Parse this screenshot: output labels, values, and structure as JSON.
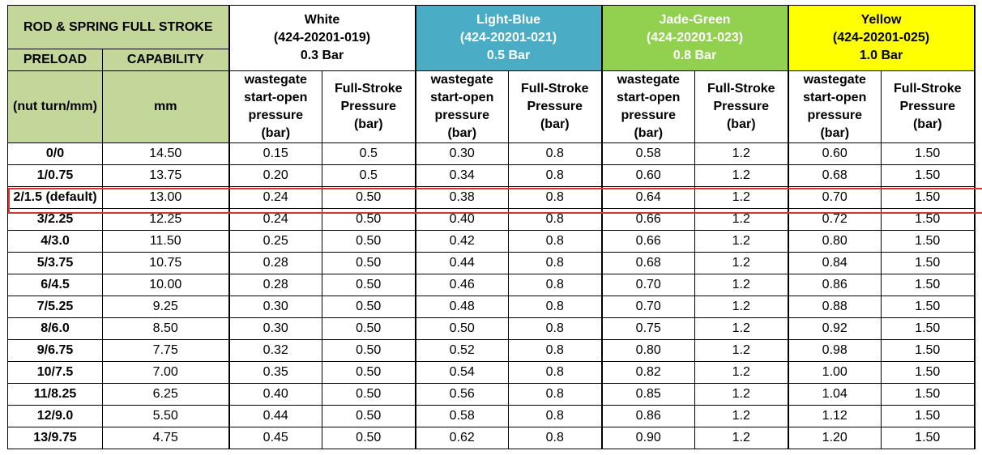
{
  "header": {
    "title": "ROD & SPRING FULL STROKE",
    "preload": "PRELOAD",
    "capability": "CAPABILITY",
    "preload_unit": "(nut turn/mm)",
    "capability_unit": "mm"
  },
  "springs": [
    {
      "name": "White",
      "part": "(424-20201-019)",
      "pressure": "0.3 Bar",
      "color": "#ffffff"
    },
    {
      "name": "Light-Blue",
      "part": "(424-20201-021)",
      "pressure": "0.5 Bar",
      "color": "#4bacc6"
    },
    {
      "name": "Jade-Green",
      "part": "(424-20201-023)",
      "pressure": "0.8 Bar",
      "color": "#92d050"
    },
    {
      "name": "Yellow",
      "part": "(424-20201-025)",
      "pressure": "1.0 Bar",
      "color": "#ffff00"
    }
  ],
  "subheaders": {
    "start_open_l1": "wastegate",
    "start_open_l2": "start-open",
    "start_open_l3": "pressure",
    "start_open_l4": "(bar)",
    "full_stroke_l1": "Full-Stroke",
    "full_stroke_l2": "Pressure",
    "full_stroke_l3": "(bar)"
  },
  "highlight_color": "#e03030",
  "rows": [
    {
      "preload": "0/0",
      "capability": "14.50",
      "values": [
        "0.15",
        "0.5",
        "0.30",
        "0.8",
        "0.58",
        "1.2",
        "0.60",
        "1.50"
      ]
    },
    {
      "preload": "1/0.75",
      "capability": "13.75",
      "values": [
        "0.20",
        "0.5",
        "0.34",
        "0.8",
        "0.60",
        "1.2",
        "0.68",
        "1.50"
      ]
    },
    {
      "preload": "2/1.5 (default)",
      "capability": "13.00",
      "values": [
        "0.24",
        "0.50",
        "0.38",
        "0.8",
        "0.64",
        "1.2",
        "0.70",
        "1.50"
      ]
    },
    {
      "preload": "3/2.25",
      "capability": "12.25",
      "values": [
        "0.24",
        "0.50",
        "0.40",
        "0.8",
        "0.66",
        "1.2",
        "0.72",
        "1.50"
      ]
    },
    {
      "preload": "4/3.0",
      "capability": "11.50",
      "values": [
        "0.25",
        "0.50",
        "0.42",
        "0.8",
        "0.66",
        "1.2",
        "0.80",
        "1.50"
      ]
    },
    {
      "preload": "5/3.75",
      "capability": "10.75",
      "values": [
        "0.28",
        "0.50",
        "0.44",
        "0.8",
        "0.68",
        "1.2",
        "0.84",
        "1.50"
      ]
    },
    {
      "preload": "6/4.5",
      "capability": "10.00",
      "values": [
        "0.28",
        "0.50",
        "0.46",
        "0.8",
        "0.70",
        "1.2",
        "0.86",
        "1.50"
      ]
    },
    {
      "preload": "7/5.25",
      "capability": "9.25",
      "values": [
        "0.30",
        "0.50",
        "0.48",
        "0.8",
        "0.70",
        "1.2",
        "0.88",
        "1.50"
      ]
    },
    {
      "preload": "8/6.0",
      "capability": "8.50",
      "values": [
        "0.30",
        "0.50",
        "0.50",
        "0.8",
        "0.75",
        "1.2",
        "0.92",
        "1.50"
      ]
    },
    {
      "preload": "9/6.75",
      "capability": "7.75",
      "values": [
        "0.32",
        "0.50",
        "0.52",
        "0.8",
        "0.80",
        "1.2",
        "0.98",
        "1.50"
      ]
    },
    {
      "preload": "10/7.5",
      "capability": "7.00",
      "values": [
        "0.35",
        "0.50",
        "0.54",
        "0.8",
        "0.82",
        "1.2",
        "1.00",
        "1.50"
      ]
    },
    {
      "preload": "11/8.25",
      "capability": "6.25",
      "values": [
        "0.40",
        "0.50",
        "0.56",
        "0.8",
        "0.85",
        "1.2",
        "1.04",
        "1.50"
      ]
    },
    {
      "preload": "12/9.0",
      "capability": "5.50",
      "values": [
        "0.44",
        "0.50",
        "0.58",
        "0.8",
        "0.86",
        "1.2",
        "1.12",
        "1.50"
      ]
    },
    {
      "preload": "13/9.75",
      "capability": "4.75",
      "values": [
        "0.45",
        "0.50",
        "0.62",
        "0.8",
        "0.90",
        "1.2",
        "1.20",
        "1.50"
      ]
    }
  ]
}
